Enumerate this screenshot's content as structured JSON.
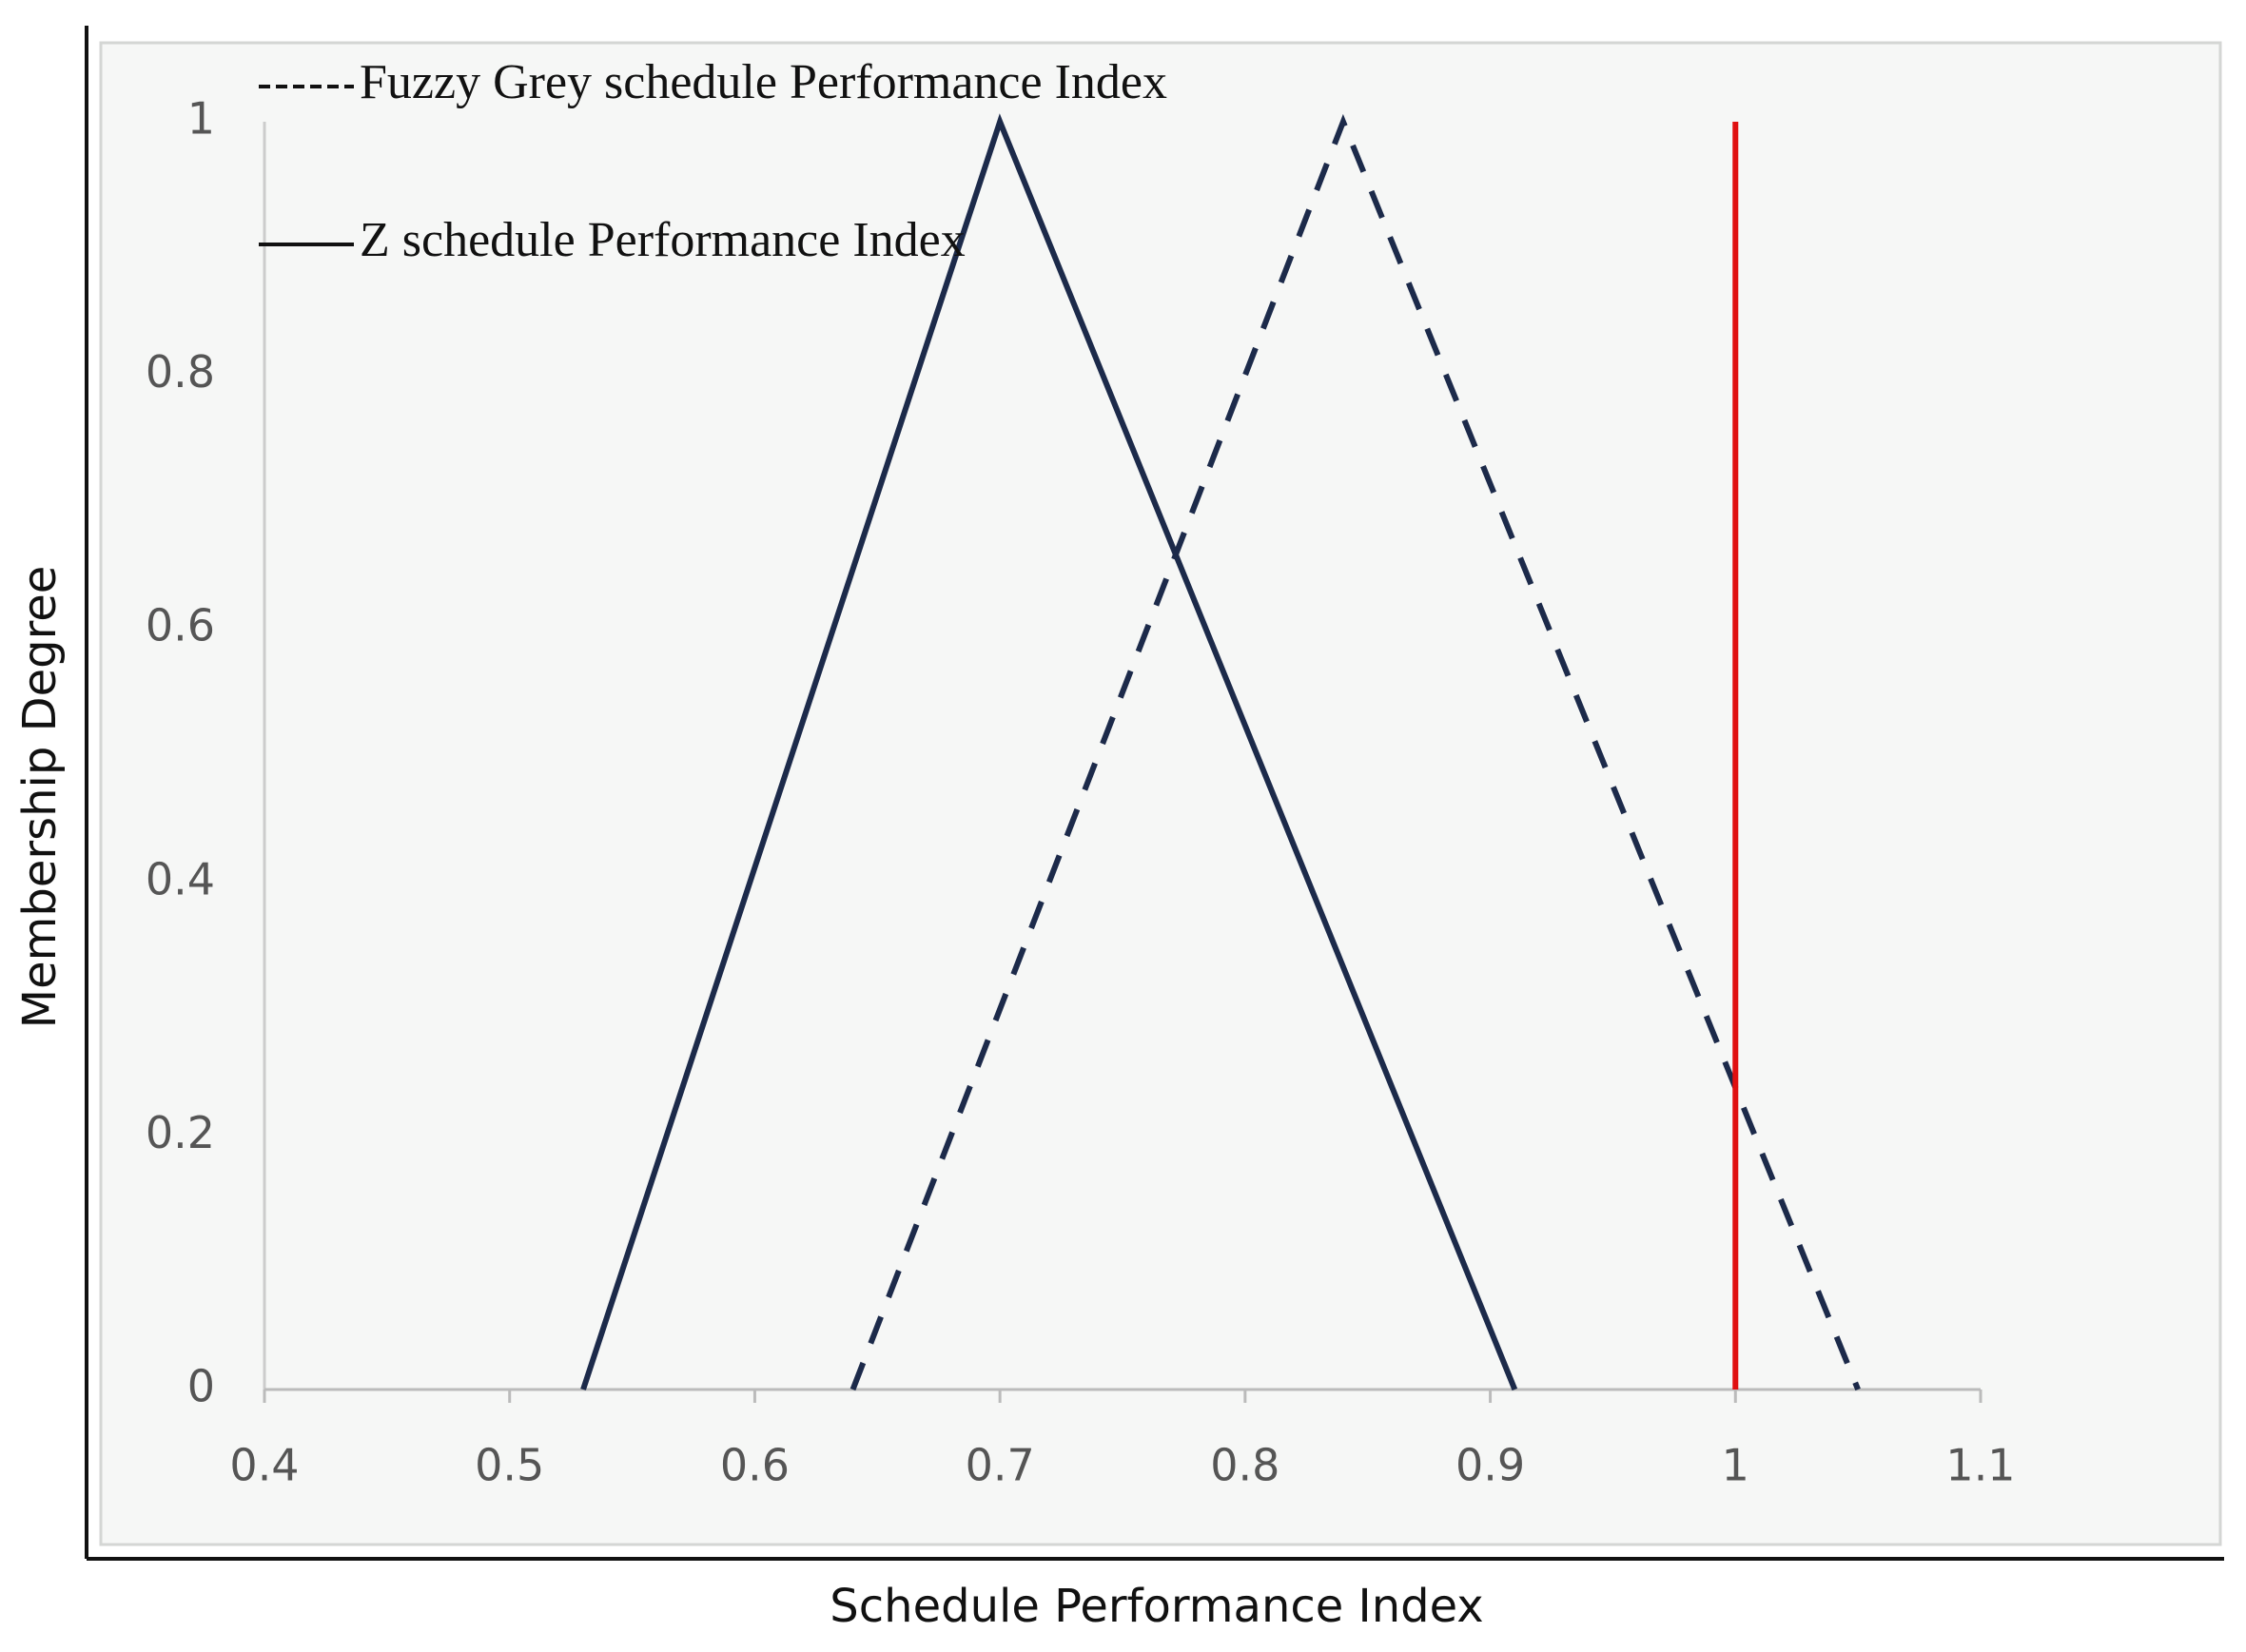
{
  "chart_data": {
    "type": "line",
    "xlabel": "Schedule Performance Index",
    "ylabel": "Membership Degree",
    "series": [
      {
        "name": "Fuzzy Grey schedule Performance Index",
        "color": "#1c2a4a",
        "dash": true,
        "x": [
          0.64,
          0.84,
          1.05
        ],
        "values": [
          0,
          1,
          0
        ]
      },
      {
        "name": "Z schedule Performance Index",
        "color": "#1c2a4a",
        "dash": false,
        "x": [
          0.53,
          0.7,
          0.91
        ],
        "values": [
          0,
          1,
          0
        ]
      },
      {
        "color": "#e01010",
        "dash": false,
        "x": [
          1,
          1
        ],
        "values": [
          0,
          1
        ]
      }
    ],
    "xlim": [
      0.4,
      1.1
    ],
    "xticks": [
      0.4,
      0.5,
      0.6,
      0.7,
      0.8,
      0.9,
      1,
      1.1
    ],
    "ylim": [
      0,
      1
    ],
    "yticks": [
      0,
      0.2,
      0.4,
      0.6,
      0.8,
      1
    ],
    "legend": "upper left"
  }
}
